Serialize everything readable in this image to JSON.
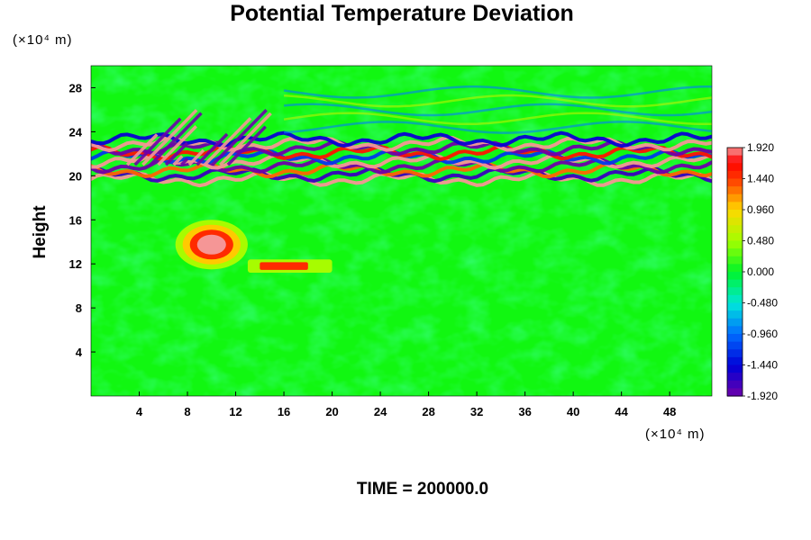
{
  "chart_data": {
    "type": "heatmap",
    "title": "Potential Temperature Deviation",
    "xlabel": "",
    "ylabel": "Height",
    "x_unit": "(×10⁴ m)",
    "y_unit": "(×10⁴ m)",
    "xlim": [
      0,
      51.5
    ],
    "ylim": [
      0,
      30
    ],
    "x_ticks": [
      4,
      8,
      12,
      16,
      20,
      24,
      28,
      32,
      36,
      40,
      44,
      48
    ],
    "y_ticks": [
      4,
      8,
      12,
      16,
      20,
      24,
      28
    ],
    "grid": false,
    "colorbar": {
      "placement": "right",
      "min": -1.92,
      "max": 1.92,
      "levels": 32,
      "tick_labels": [
        "1.920",
        "1.440",
        "0.960",
        "0.480",
        "0.000",
        "-0.480",
        "-0.960",
        "-1.440",
        "-1.920"
      ]
    },
    "features": [
      {
        "label": "strong alternating band",
        "x": [
          0,
          51.5
        ],
        "y": [
          19.5,
          23.5
        ],
        "value_range": [
          -1.92,
          1.92
        ]
      },
      {
        "label": "tilted wave packets",
        "x": [
          3,
          12
        ],
        "y": [
          21,
          26
        ],
        "value_range": [
          -1.92,
          1.92
        ]
      },
      {
        "label": "positive blob",
        "x": [
          7,
          13
        ],
        "y": [
          11.5,
          16
        ],
        "value_range": [
          0.5,
          1.92
        ]
      },
      {
        "label": "positive streak",
        "x": [
          13,
          20
        ],
        "y": [
          11.2,
          12.4
        ],
        "value_range": [
          0.5,
          1.5
        ]
      },
      {
        "label": "weak upper waves",
        "x": [
          16,
          51.5
        ],
        "y": [
          24,
          28
        ],
        "value_range": [
          -0.9,
          0.6
        ]
      },
      {
        "label": "background",
        "x": [
          0,
          51.5
        ],
        "y": [
          0,
          19
        ],
        "value_range": [
          -0.5,
          0.5
        ]
      }
    ],
    "annotation": "TIME = 200000.0"
  }
}
